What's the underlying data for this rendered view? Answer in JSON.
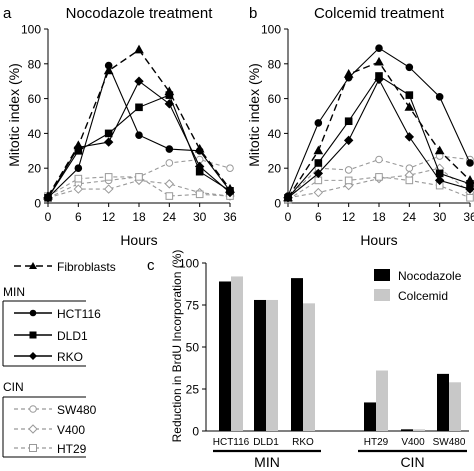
{
  "panel_letters": {
    "a": "a",
    "b": "b",
    "c": "c"
  },
  "legend": {
    "fibroblasts": "Fibroblasts",
    "min_title": "MIN",
    "min_items": [
      "HCT116",
      "DLD1",
      "RKO"
    ],
    "cin_title": "CIN",
    "cin_items": [
      "SW480",
      "V400",
      "HT29"
    ]
  },
  "colors": {
    "solid": "#000000",
    "dashed": "#999999",
    "bar_black": "#000000",
    "bar_grey": "#c8c8c8"
  },
  "chart_data": [
    {
      "type": "line",
      "title": "Nocodazole treatment",
      "xlabel": "Hours",
      "ylabel": "Mitotic index (%)",
      "x": [
        0,
        6,
        12,
        18,
        24,
        30,
        36
      ],
      "xlim": [
        0,
        36
      ],
      "ylim": [
        0,
        100
      ],
      "yticks": [
        0,
        20,
        40,
        60,
        80,
        100
      ],
      "series": [
        {
          "name": "Fibroblasts",
          "values": [
            4,
            33,
            76,
            88,
            64,
            31,
            8
          ]
        },
        {
          "name": "HCT116",
          "values": [
            3,
            20,
            79,
            39,
            31,
            30,
            7
          ]
        },
        {
          "name": "DLD1",
          "values": [
            3,
            30,
            40,
            55,
            62,
            18,
            7
          ]
        },
        {
          "name": "RKO",
          "values": [
            3,
            32,
            35,
            70,
            57,
            21,
            6
          ]
        },
        {
          "name": "SW480",
          "values": [
            3,
            11,
            13,
            15,
            23,
            25,
            20
          ]
        },
        {
          "name": "V400",
          "values": [
            3,
            8,
            8,
            13,
            11,
            6,
            4
          ]
        },
        {
          "name": "HT29",
          "values": [
            4,
            14,
            15,
            15,
            4,
            5,
            4
          ]
        }
      ]
    },
    {
      "type": "line",
      "title": "Colcemid treatment",
      "xlabel": "Hours",
      "ylabel": "Mitotic index (%)",
      "x": [
        0,
        6,
        12,
        18,
        24,
        30,
        36
      ],
      "xlim": [
        0,
        36
      ],
      "ylim": [
        0,
        100
      ],
      "yticks": [
        0,
        20,
        40,
        60,
        80,
        100
      ],
      "series": [
        {
          "name": "Fibroblasts",
          "values": [
            3,
            30,
            74,
            81,
            55,
            30,
            13
          ]
        },
        {
          "name": "HCT116",
          "values": [
            4,
            46,
            72,
            89,
            78,
            61,
            23
          ]
        },
        {
          "name": "DLD1",
          "values": [
            3,
            23,
            47,
            73,
            62,
            17,
            11
          ]
        },
        {
          "name": "RKO",
          "values": [
            3,
            17,
            36,
            71,
            38,
            13,
            8
          ]
        },
        {
          "name": "SW480",
          "values": [
            3,
            20,
            19,
            25,
            20,
            27,
            25
          ]
        },
        {
          "name": "V400",
          "values": [
            3,
            6,
            10,
            14,
            16,
            20,
            6
          ]
        },
        {
          "name": "HT29",
          "values": [
            2,
            13,
            13,
            15,
            13,
            10,
            3
          ]
        }
      ]
    },
    {
      "type": "bar",
      "ylabel": "Reduction in BrdU Incorporation (%)",
      "categories": [
        "HCT116",
        "DLD1",
        "RKO",
        "HT29",
        "V400",
        "SW480"
      ],
      "groups": [
        {
          "label": "MIN",
          "categories": [
            "HCT116",
            "DLD1",
            "RKO"
          ]
        },
        {
          "label": "CIN",
          "categories": [
            "HT29",
            "V400",
            "SW480"
          ]
        }
      ],
      "ylim": [
        0,
        100
      ],
      "yticks": [
        0,
        25,
        50,
        75,
        100
      ],
      "legend_position": "top-right",
      "series": [
        {
          "name": "Nocodazole",
          "values": [
            89,
            78,
            91,
            17,
            1,
            34
          ]
        },
        {
          "name": "Colcemid",
          "values": [
            92,
            78,
            76,
            36,
            1,
            29
          ]
        }
      ]
    }
  ]
}
